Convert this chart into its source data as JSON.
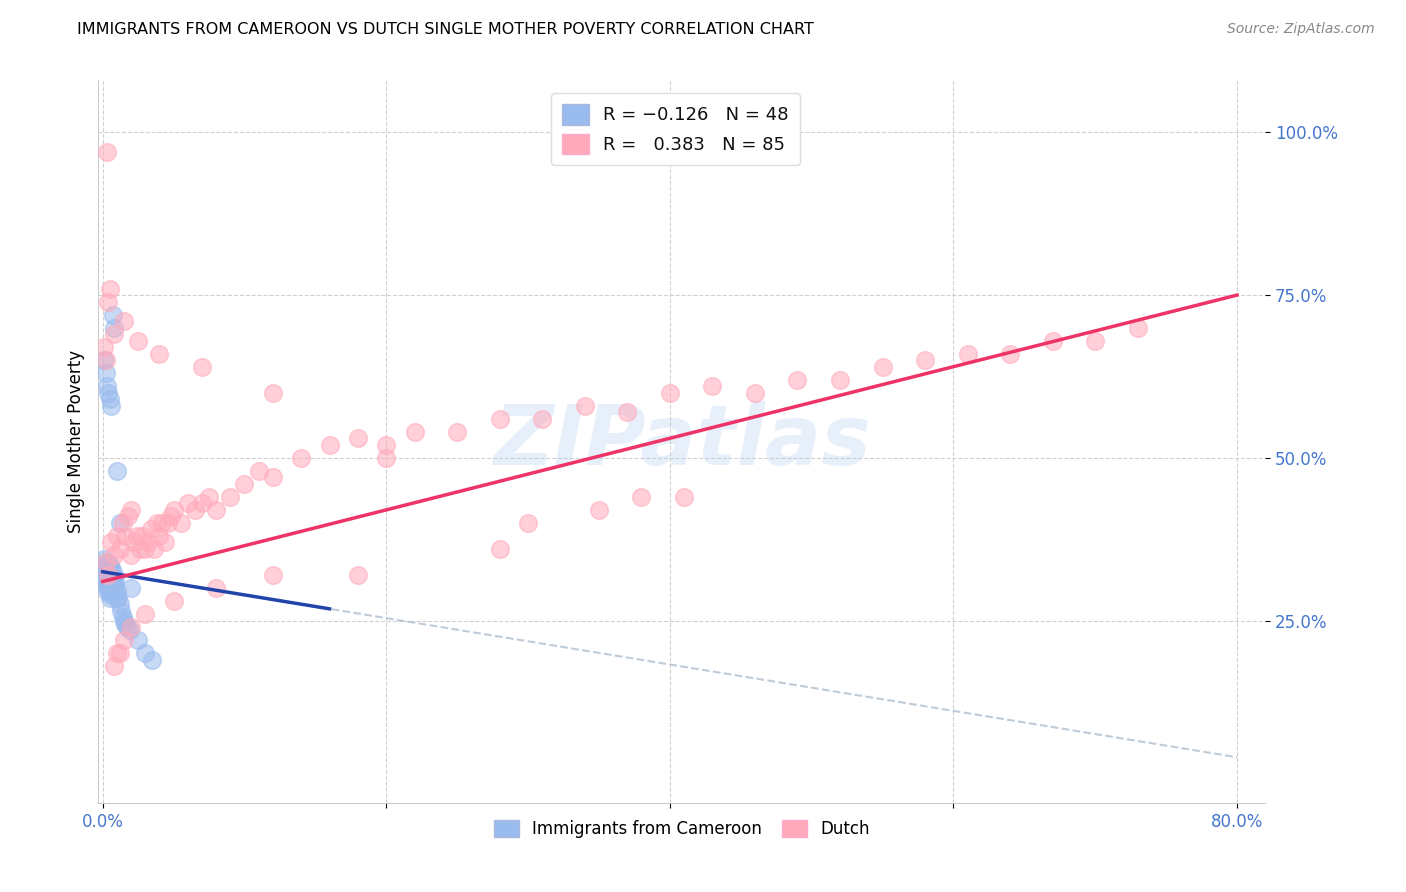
{
  "title": "IMMIGRANTS FROM CAMEROON VS DUTCH SINGLE MOTHER POVERTY CORRELATION CHART",
  "source": "Source: ZipAtlas.com",
  "ylabel": "Single Mother Poverty",
  "x_min": -0.003,
  "x_max": 0.82,
  "y_min": -0.03,
  "y_max": 1.08,
  "color_blue": "#99BBEE",
  "color_pink": "#FFAABB",
  "color_blue_line": "#2244AA",
  "color_pink_line": "#EE3366",
  "color_gray_dash": "#AABBCC",
  "r1": "-0.126",
  "n1": "48",
  "r2": "0.383",
  "n2": "85",
  "watermark_color": "#AACCEE",
  "blue_x": [
    0.001,
    0.001,
    0.001,
    0.002,
    0.002,
    0.002,
    0.002,
    0.003,
    0.003,
    0.003,
    0.003,
    0.003,
    0.004,
    0.004,
    0.004,
    0.004,
    0.005,
    0.005,
    0.005,
    0.005,
    0.005,
    0.005,
    0.006,
    0.006,
    0.006,
    0.006,
    0.006,
    0.007,
    0.007,
    0.007,
    0.007,
    0.008,
    0.008,
    0.008,
    0.009,
    0.009,
    0.01,
    0.01,
    0.011,
    0.012,
    0.013,
    0.014,
    0.015,
    0.016,
    0.017,
    0.019,
    0.025,
    0.035
  ],
  "blue_y": [
    0.345,
    0.33,
    0.315,
    0.34,
    0.33,
    0.32,
    0.31,
    0.335,
    0.325,
    0.315,
    0.305,
    0.295,
    0.33,
    0.32,
    0.31,
    0.3,
    0.335,
    0.325,
    0.315,
    0.305,
    0.295,
    0.285,
    0.33,
    0.32,
    0.31,
    0.3,
    0.29,
    0.325,
    0.315,
    0.305,
    0.295,
    0.315,
    0.305,
    0.295,
    0.315,
    0.305,
    0.295,
    0.285,
    0.285,
    0.275,
    0.265,
    0.255,
    0.25,
    0.245,
    0.24,
    0.235,
    0.22,
    0.19
  ],
  "blue_x_outliers": [
    0.001,
    0.002,
    0.003,
    0.004,
    0.005,
    0.006,
    0.007,
    0.008,
    0.01,
    0.012,
    0.02,
    0.03
  ],
  "blue_y_outliers": [
    0.65,
    0.63,
    0.61,
    0.6,
    0.59,
    0.58,
    0.72,
    0.7,
    0.48,
    0.4,
    0.3,
    0.2
  ],
  "pink_x": [
    0.002,
    0.004,
    0.006,
    0.008,
    0.01,
    0.012,
    0.014,
    0.016,
    0.018,
    0.02,
    0.02,
    0.022,
    0.024,
    0.026,
    0.028,
    0.03,
    0.032,
    0.034,
    0.036,
    0.038,
    0.04,
    0.042,
    0.044,
    0.046,
    0.048,
    0.05,
    0.055,
    0.06,
    0.065,
    0.07,
    0.075,
    0.08,
    0.09,
    0.1,
    0.11,
    0.12,
    0.14,
    0.16,
    0.18,
    0.2,
    0.22,
    0.25,
    0.28,
    0.31,
    0.34,
    0.37,
    0.4,
    0.43,
    0.46,
    0.49,
    0.52,
    0.55,
    0.58,
    0.61,
    0.64,
    0.67,
    0.7,
    0.73,
    0.35,
    0.38,
    0.41,
    0.28,
    0.18,
    0.12,
    0.08,
    0.05,
    0.03,
    0.02,
    0.015,
    0.012,
    0.01,
    0.008,
    0.005,
    0.004,
    0.003,
    0.002,
    0.001,
    0.008,
    0.015,
    0.025,
    0.04,
    0.07,
    0.12,
    0.2,
    0.3
  ],
  "pink_y": [
    0.34,
    0.32,
    0.37,
    0.35,
    0.38,
    0.36,
    0.4,
    0.38,
    0.41,
    0.42,
    0.35,
    0.37,
    0.38,
    0.36,
    0.38,
    0.36,
    0.37,
    0.39,
    0.36,
    0.4,
    0.38,
    0.4,
    0.37,
    0.4,
    0.41,
    0.42,
    0.4,
    0.43,
    0.42,
    0.43,
    0.44,
    0.42,
    0.44,
    0.46,
    0.48,
    0.47,
    0.5,
    0.52,
    0.53,
    0.52,
    0.54,
    0.54,
    0.56,
    0.56,
    0.58,
    0.57,
    0.6,
    0.61,
    0.6,
    0.62,
    0.62,
    0.64,
    0.65,
    0.66,
    0.66,
    0.68,
    0.68,
    0.7,
    0.42,
    0.44,
    0.44,
    0.36,
    0.32,
    0.32,
    0.3,
    0.28,
    0.26,
    0.24,
    0.22,
    0.2,
    0.2,
    0.18,
    0.76,
    0.74,
    0.97,
    0.65,
    0.67,
    0.69,
    0.71,
    0.68,
    0.66,
    0.64,
    0.6,
    0.5,
    0.4
  ],
  "blue_line_x": [
    0.0,
    0.16
  ],
  "blue_line_y": [
    0.325,
    0.268
  ],
  "gray_line_x": [
    0.0,
    0.8
  ],
  "gray_line_y": [
    0.325,
    0.04
  ],
  "pink_line_x": [
    0.0,
    0.8
  ],
  "pink_line_y": [
    0.31,
    0.75
  ]
}
